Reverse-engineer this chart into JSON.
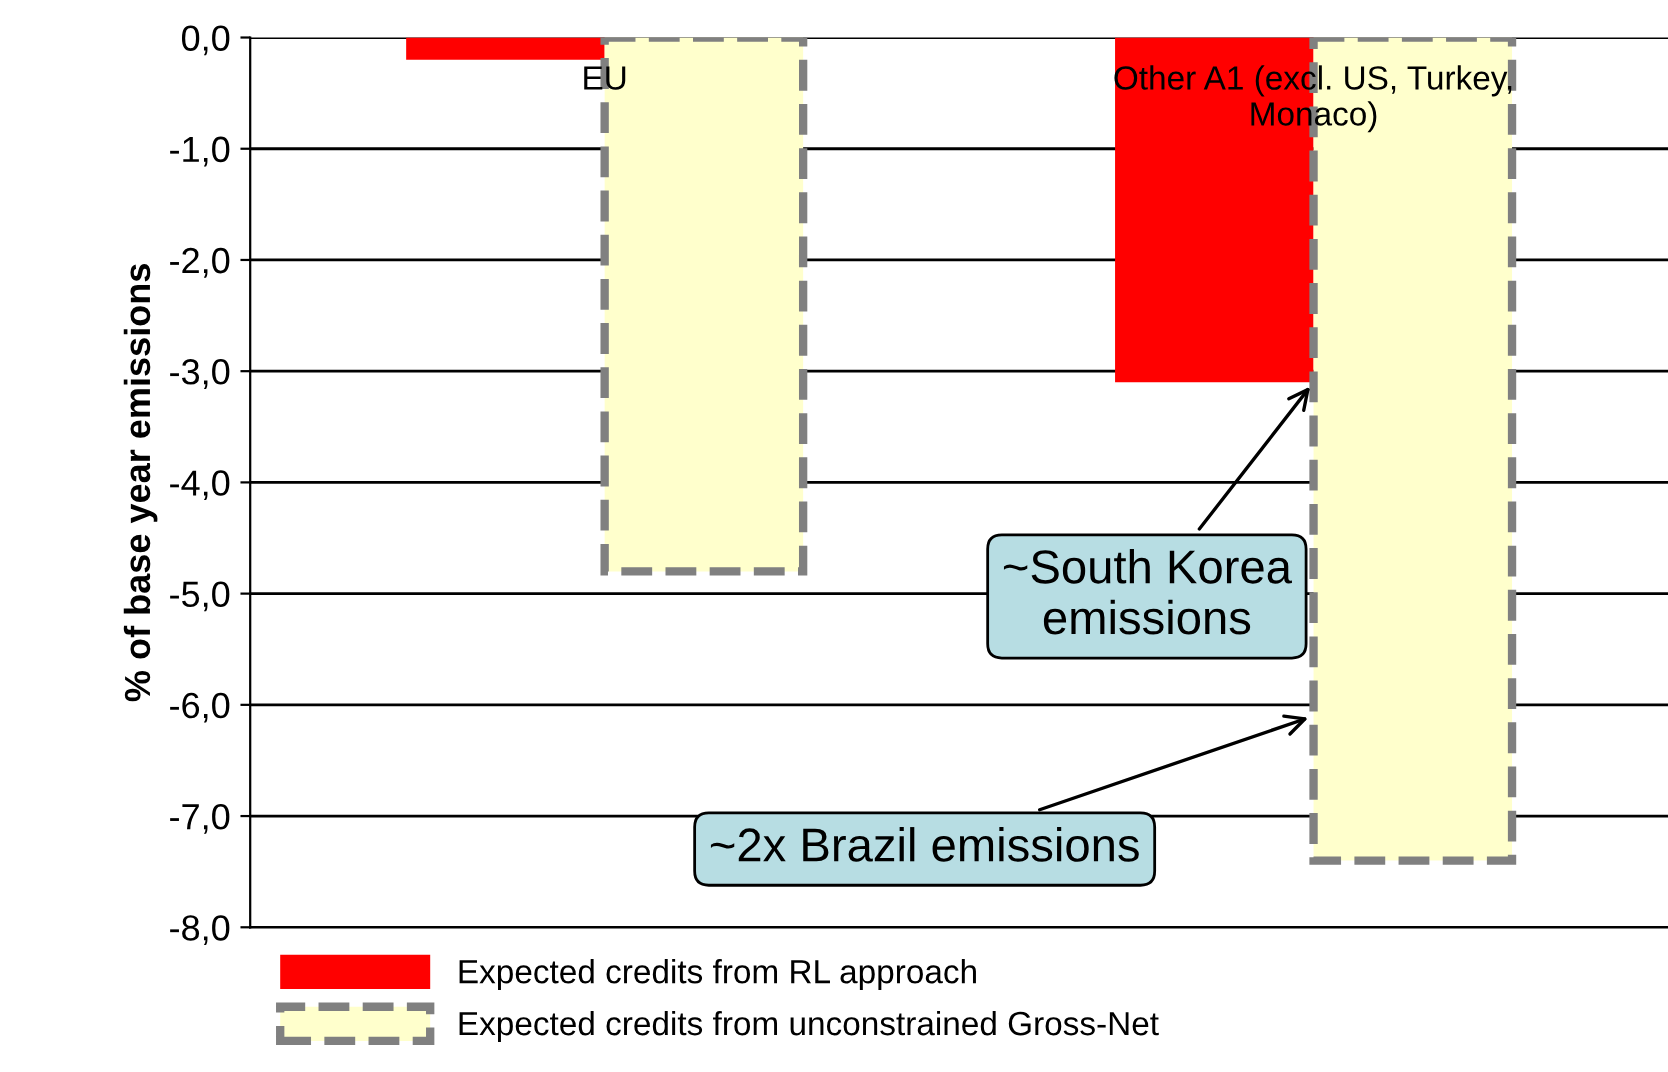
{
  "chart_data": {
    "type": "bar",
    "ylabel": "% of base year emissions",
    "categories": [
      "EU",
      "Other A1 (excl. US, Turkey,\nMonaco)"
    ],
    "series": [
      {
        "name": "Expected credits from RL approach",
        "color": "#ff0000",
        "values": [
          -0.2,
          -3.1
        ]
      },
      {
        "name": "Expected credits from unconstrained Gross-Net",
        "color": "#ffffcc",
        "values": [
          -4.8,
          -7.4
        ],
        "line_style": "dashed"
      }
    ],
    "ylim": [
      -8,
      0
    ],
    "yticks": [
      {
        "value": 0,
        "label": "0,0"
      },
      {
        "value": -1,
        "label": "-1,0"
      },
      {
        "value": -2,
        "label": "-2,0"
      },
      {
        "value": -3,
        "label": "-3,0"
      },
      {
        "value": -4,
        "label": "-4,0"
      },
      {
        "value": -5,
        "label": "-5,0"
      },
      {
        "value": -6,
        "label": "-6,0"
      },
      {
        "value": -7,
        "label": "-7,0"
      },
      {
        "value": -8,
        "label": "-8,0"
      }
    ],
    "grid": "y",
    "legend": "bottom",
    "annotations": [
      {
        "text": "~South Korea\nemissions",
        "x": "Other A1 (excl. US, Turkey,\nMonaco)",
        "y": -3.1
      },
      {
        "text": "~2x Brazil emissions",
        "x": "Other A1 (excl. US, Turkey,\nMonaco)",
        "y": -6.1
      }
    ]
  }
}
